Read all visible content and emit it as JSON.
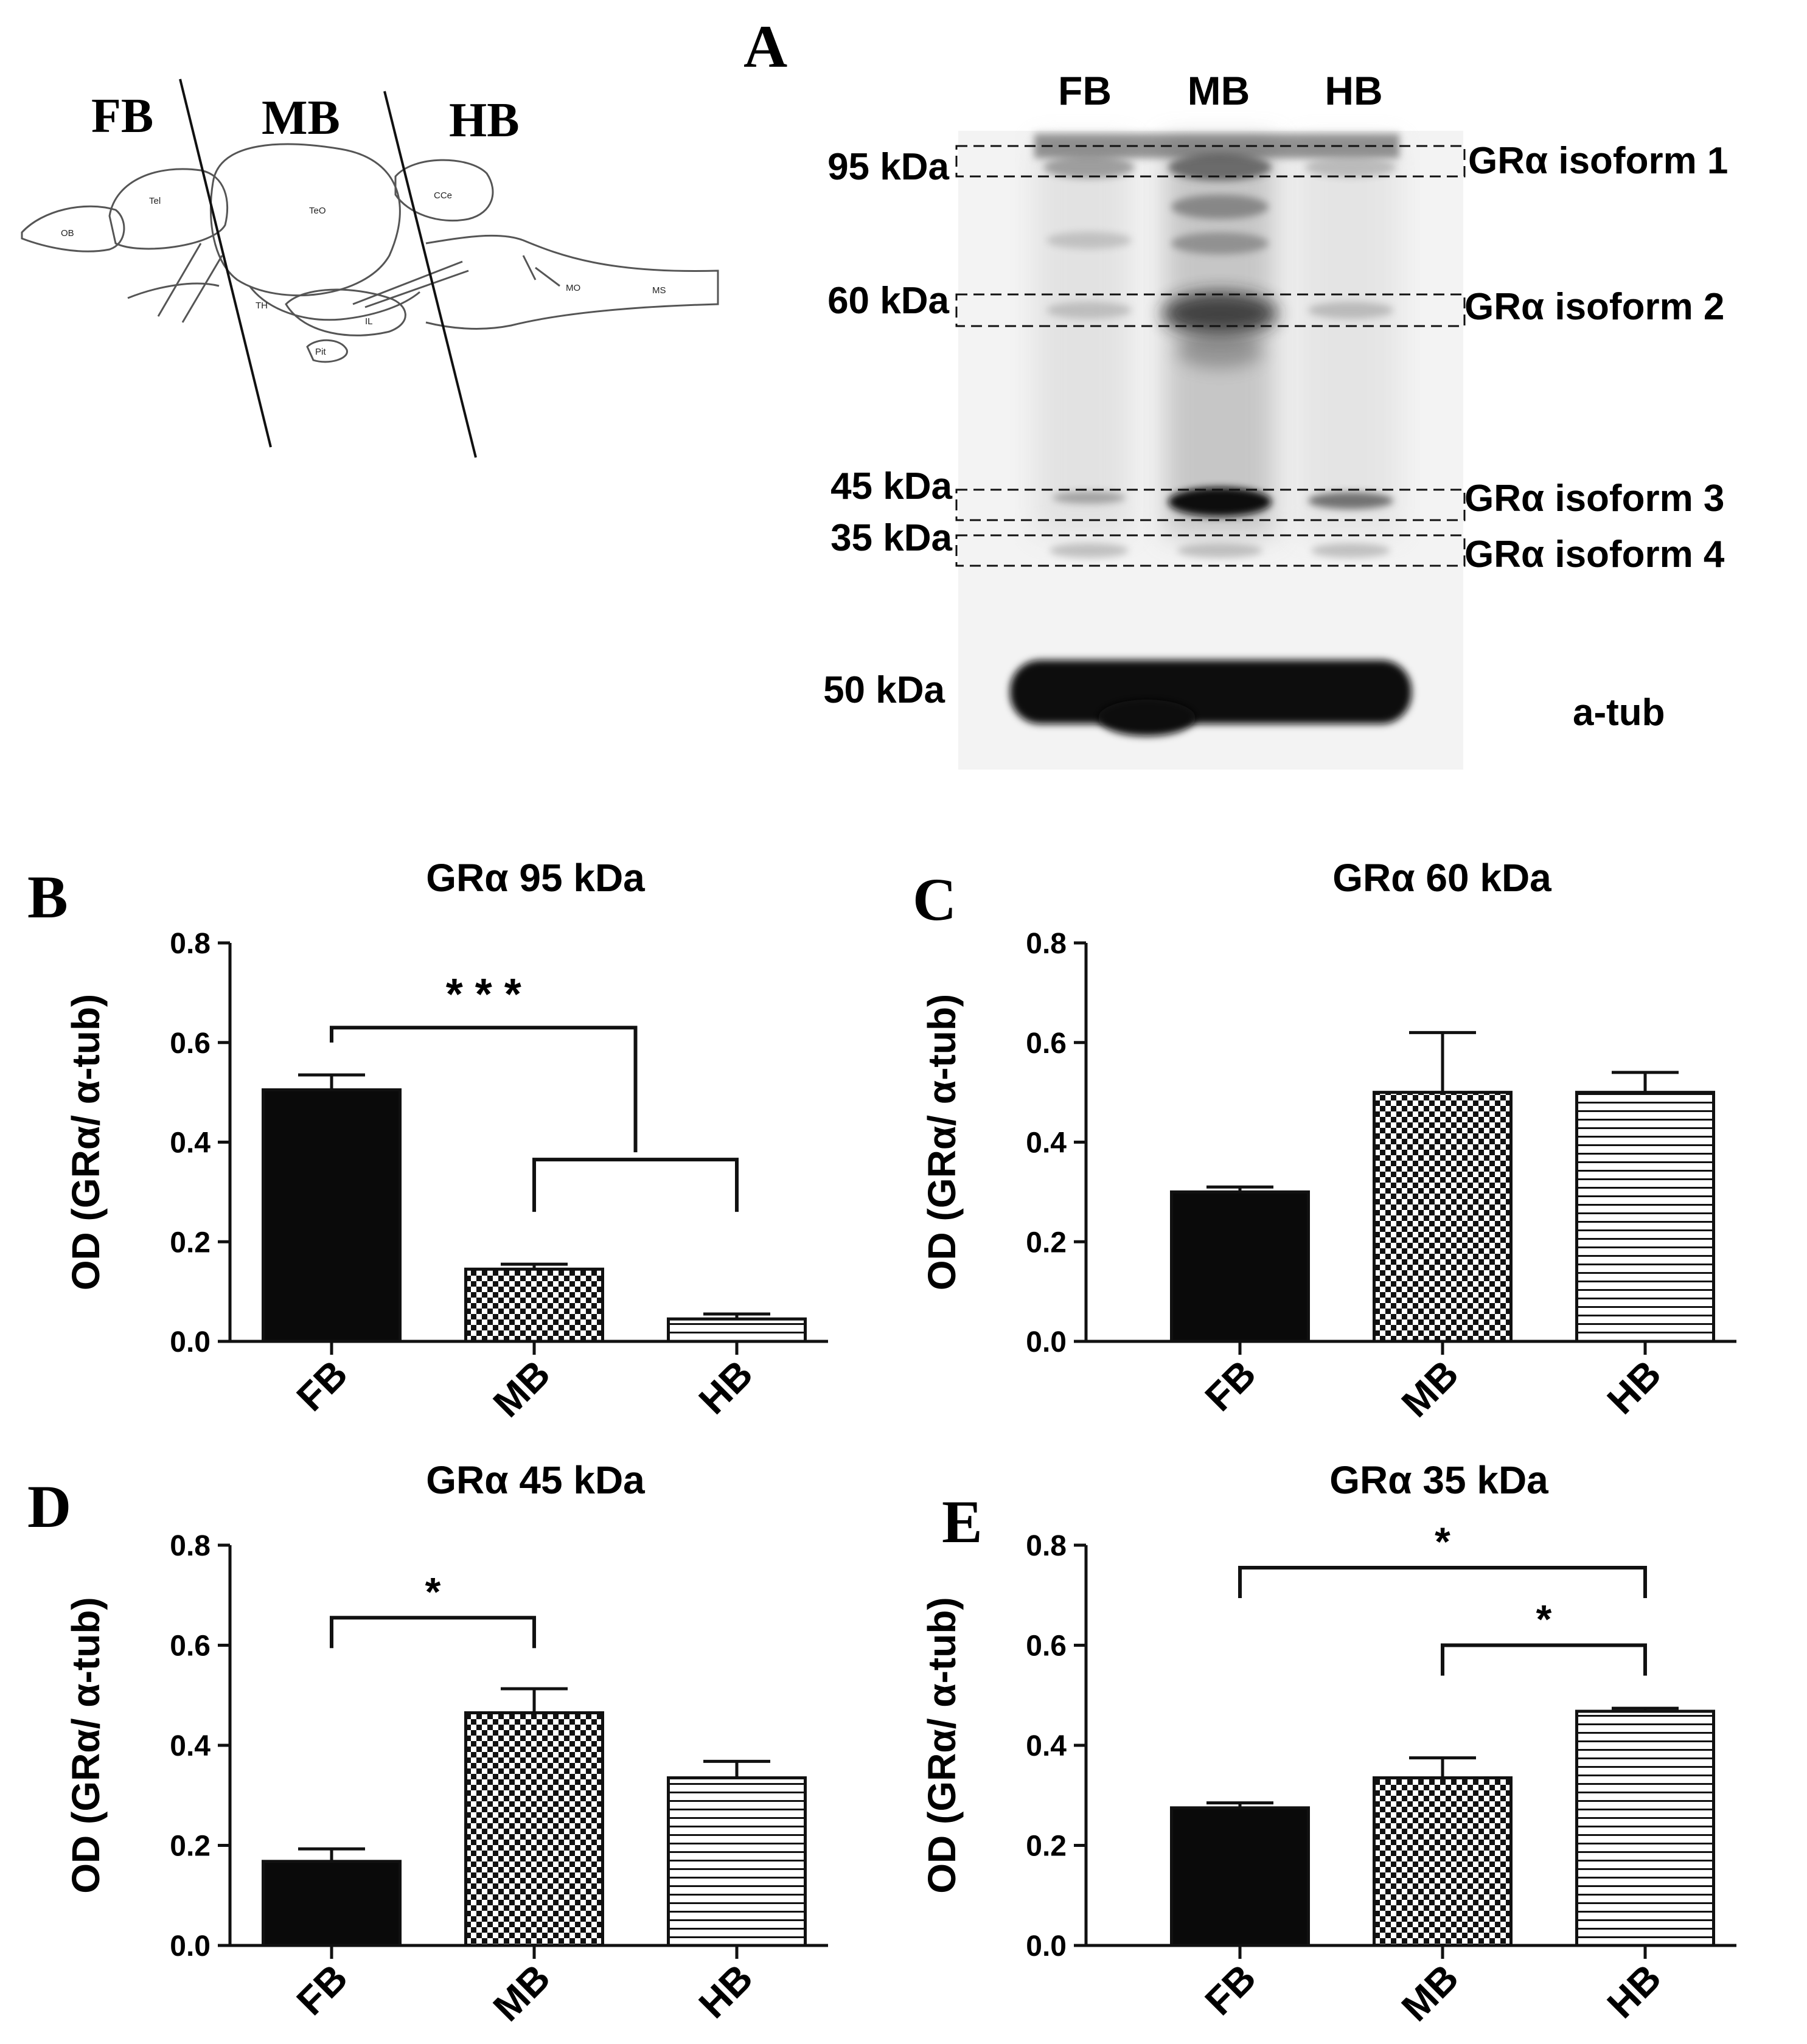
{
  "panel_labels": {
    "A": "A",
    "B": "B",
    "C": "C",
    "D": "D",
    "E": "E"
  },
  "brain_schematic": {
    "regions": [
      "FB",
      "MB",
      "HB"
    ],
    "structures": [
      "OB",
      "Tel",
      "TeO",
      "CCe",
      "TH",
      "IL",
      "Pit",
      "MO",
      "MS"
    ]
  },
  "blot": {
    "lanes": [
      "FB",
      "MB",
      "HB"
    ],
    "markers": [
      "95 kDa",
      "60 kDa",
      "45 kDa",
      "35 kDa",
      "50 kDa"
    ],
    "isoforms": [
      "GRα isoform 1",
      "GRα isoform 2",
      "GRα isoform 3",
      "GRα isoform 4"
    ],
    "loading_control": "a-tub",
    "colors": {
      "band": "#0c0c0c",
      "background": "#f4f4f4"
    }
  },
  "chart_data": [
    {
      "id": "B",
      "type": "bar",
      "title": "GRα 95 kDa",
      "categories": [
        "FB",
        "MB",
        "HB"
      ],
      "values": [
        0.505,
        0.145,
        0.045
      ],
      "errors": [
        0.03,
        0.01,
        0.01
      ],
      "patterns": [
        "solid",
        "checker",
        "stripes"
      ],
      "ylabel": "OD (GRα/ α-tub)",
      "xlabel": "",
      "ylim": [
        0,
        0.8
      ],
      "yticks": [
        "0.0",
        "0.2",
        "0.4",
        "0.6",
        "0.8"
      ],
      "significance": [
        {
          "type": "nested",
          "from": 0,
          "to_group": [
            1,
            2
          ],
          "label": "* * *"
        }
      ]
    },
    {
      "id": "C",
      "type": "bar",
      "title": "GRα 60 kDa",
      "categories": [
        "FB",
        "MB",
        "HB"
      ],
      "values": [
        0.3,
        0.5,
        0.5
      ],
      "errors": [
        0.01,
        0.12,
        0.04
      ],
      "patterns": [
        "solid",
        "checker",
        "stripes"
      ],
      "ylabel": "OD (GRα/ α-tub)",
      "xlabel": "",
      "ylim": [
        0,
        0.8
      ],
      "yticks": [
        "0.0",
        "0.2",
        "0.4",
        "0.6",
        "0.8"
      ],
      "significance": []
    },
    {
      "id": "D",
      "type": "bar",
      "title": "GRα 45 kDa",
      "categories": [
        "FB",
        "MB",
        "HB"
      ],
      "values": [
        0.168,
        0.465,
        0.335
      ],
      "errors": [
        0.025,
        0.048,
        0.033
      ],
      "patterns": [
        "solid",
        "checker",
        "stripes"
      ],
      "ylabel": "OD (GRα/ α-tub)",
      "xlabel": "",
      "ylim": [
        0,
        0.8
      ],
      "yticks": [
        "0.0",
        "0.2",
        "0.4",
        "0.6",
        "0.8"
      ],
      "significance": [
        {
          "type": "simple",
          "from": 0,
          "to": 1,
          "level": 0.655,
          "label": "*"
        }
      ]
    },
    {
      "id": "E",
      "type": "bar",
      "title": "GRα 35 kDa",
      "categories": [
        "FB",
        "MB",
        "HB"
      ],
      "values": [
        0.275,
        0.335,
        0.468
      ],
      "errors": [
        0.01,
        0.04,
        0.006
      ],
      "patterns": [
        "solid",
        "checker",
        "stripes"
      ],
      "ylabel": "OD (GRα/ α-tub)",
      "xlabel": "",
      "ylim": [
        0,
        0.8
      ],
      "yticks": [
        "0.0",
        "0.2",
        "0.4",
        "0.6",
        "0.8"
      ],
      "significance": [
        {
          "type": "simple",
          "from": 0,
          "to": 2,
          "level": 0.755,
          "label": "*"
        },
        {
          "type": "simple",
          "from": 1,
          "to": 2,
          "level": 0.6,
          "label": "*"
        }
      ]
    }
  ]
}
